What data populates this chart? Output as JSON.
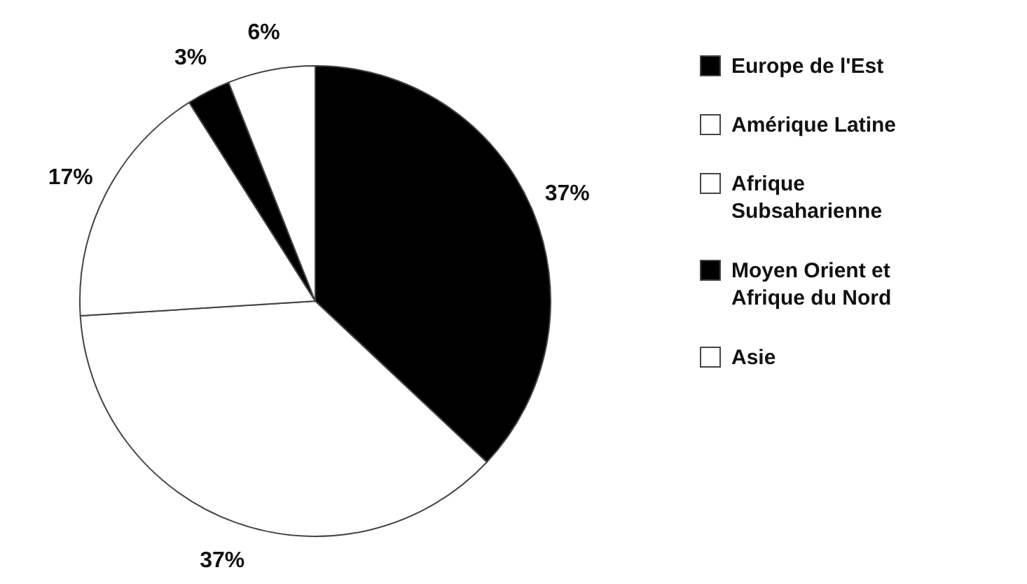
{
  "chart_data": {
    "type": "pie",
    "categories": [
      "Europe de l'Est",
      "Amérique Latine",
      "Afrique Subsaharienne",
      "Moyen Orient et Afrique du Nord",
      "Asie"
    ],
    "values": [
      37,
      37,
      17,
      3,
      6
    ],
    "colors": [
      "#000000",
      "#ffffff",
      "#ffffff",
      "#000000",
      "#ffffff"
    ],
    "value_labels": [
      "37%",
      "37%",
      "17%",
      "3%",
      "6%"
    ],
    "legend": "right"
  }
}
